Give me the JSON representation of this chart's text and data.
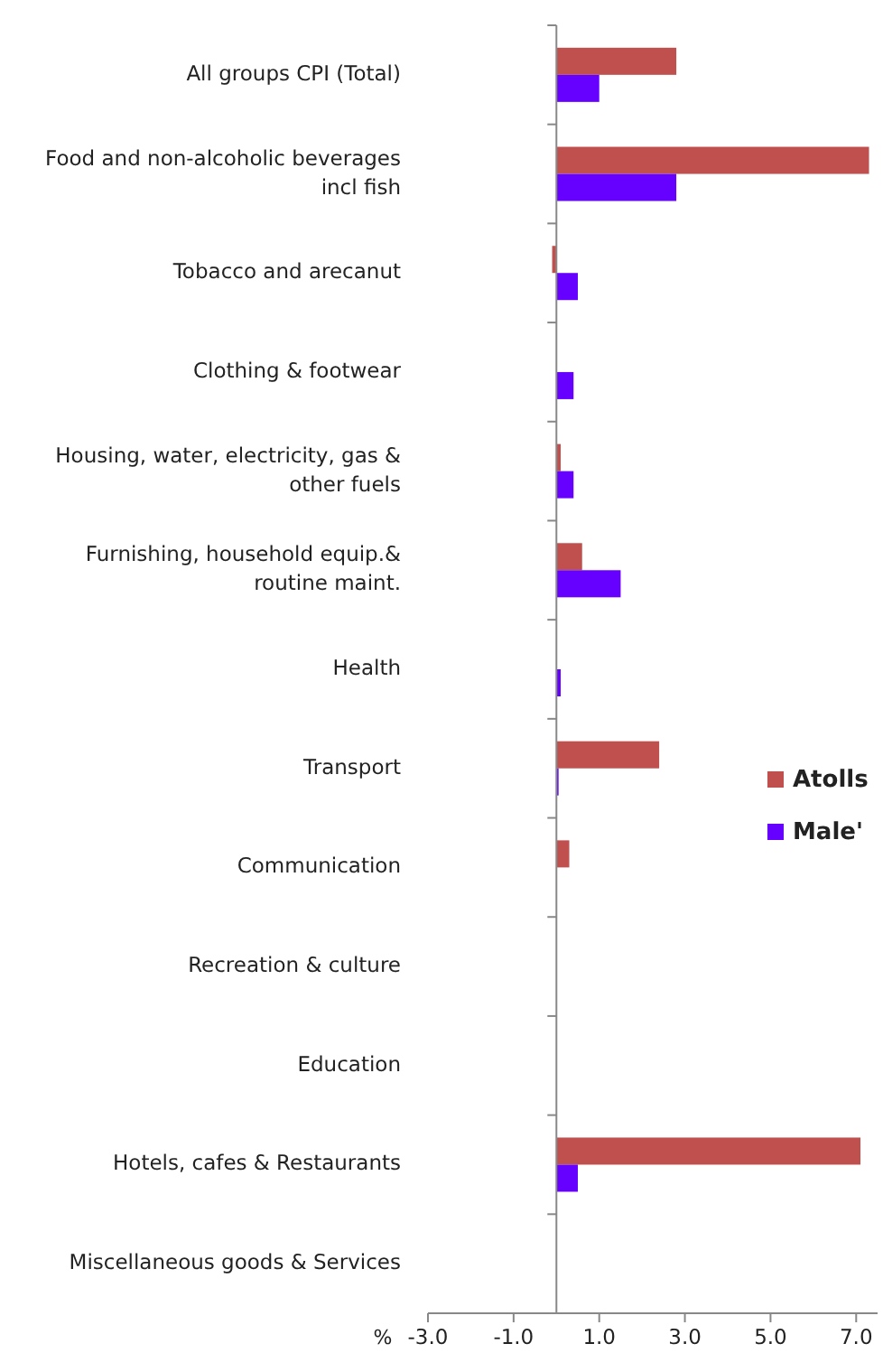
{
  "chart_data": {
    "type": "bar",
    "orientation": "horizontal",
    "xlabel": "%",
    "categories": [
      "All groups CPI (Total)",
      "Food and non-alcoholic beverages incl fish",
      "Tobacco and arecanut",
      "Clothing & footwear",
      "Housing, water, electricity, gas & other fuels",
      "Furnishing, household equip.& routine maint.",
      "Health",
      "Transport",
      "Communication",
      "Recreation & culture",
      "Education",
      "Hotels, cafes & Restaurants",
      "Miscellaneous goods & Services"
    ],
    "series": [
      {
        "name": "Atolls",
        "color": "#c0504d",
        "values": [
          2.8,
          7.3,
          -0.1,
          0,
          0.1,
          0.6,
          0,
          2.4,
          0.3,
          0,
          0,
          7.1,
          0
        ]
      },
      {
        "name": "Male'",
        "color": "#6600ff",
        "values": [
          1.0,
          2.8,
          0.5,
          0.4,
          0.4,
          1.5,
          0.1,
          0.05,
          0,
          0,
          0,
          0.5,
          0
        ]
      }
    ],
    "xlim": [
      -3,
      7.5
    ],
    "xticks": [
      {
        "value": -3,
        "label": "-3.0"
      },
      {
        "value": -1,
        "label": "-1.0"
      },
      {
        "value": 1,
        "label": "1.0"
      },
      {
        "value": 3,
        "label": "3.0"
      },
      {
        "value": 5,
        "label": "5.0"
      },
      {
        "value": 7,
        "label": "7.0"
      }
    ],
    "grid": false,
    "legend": "right"
  }
}
